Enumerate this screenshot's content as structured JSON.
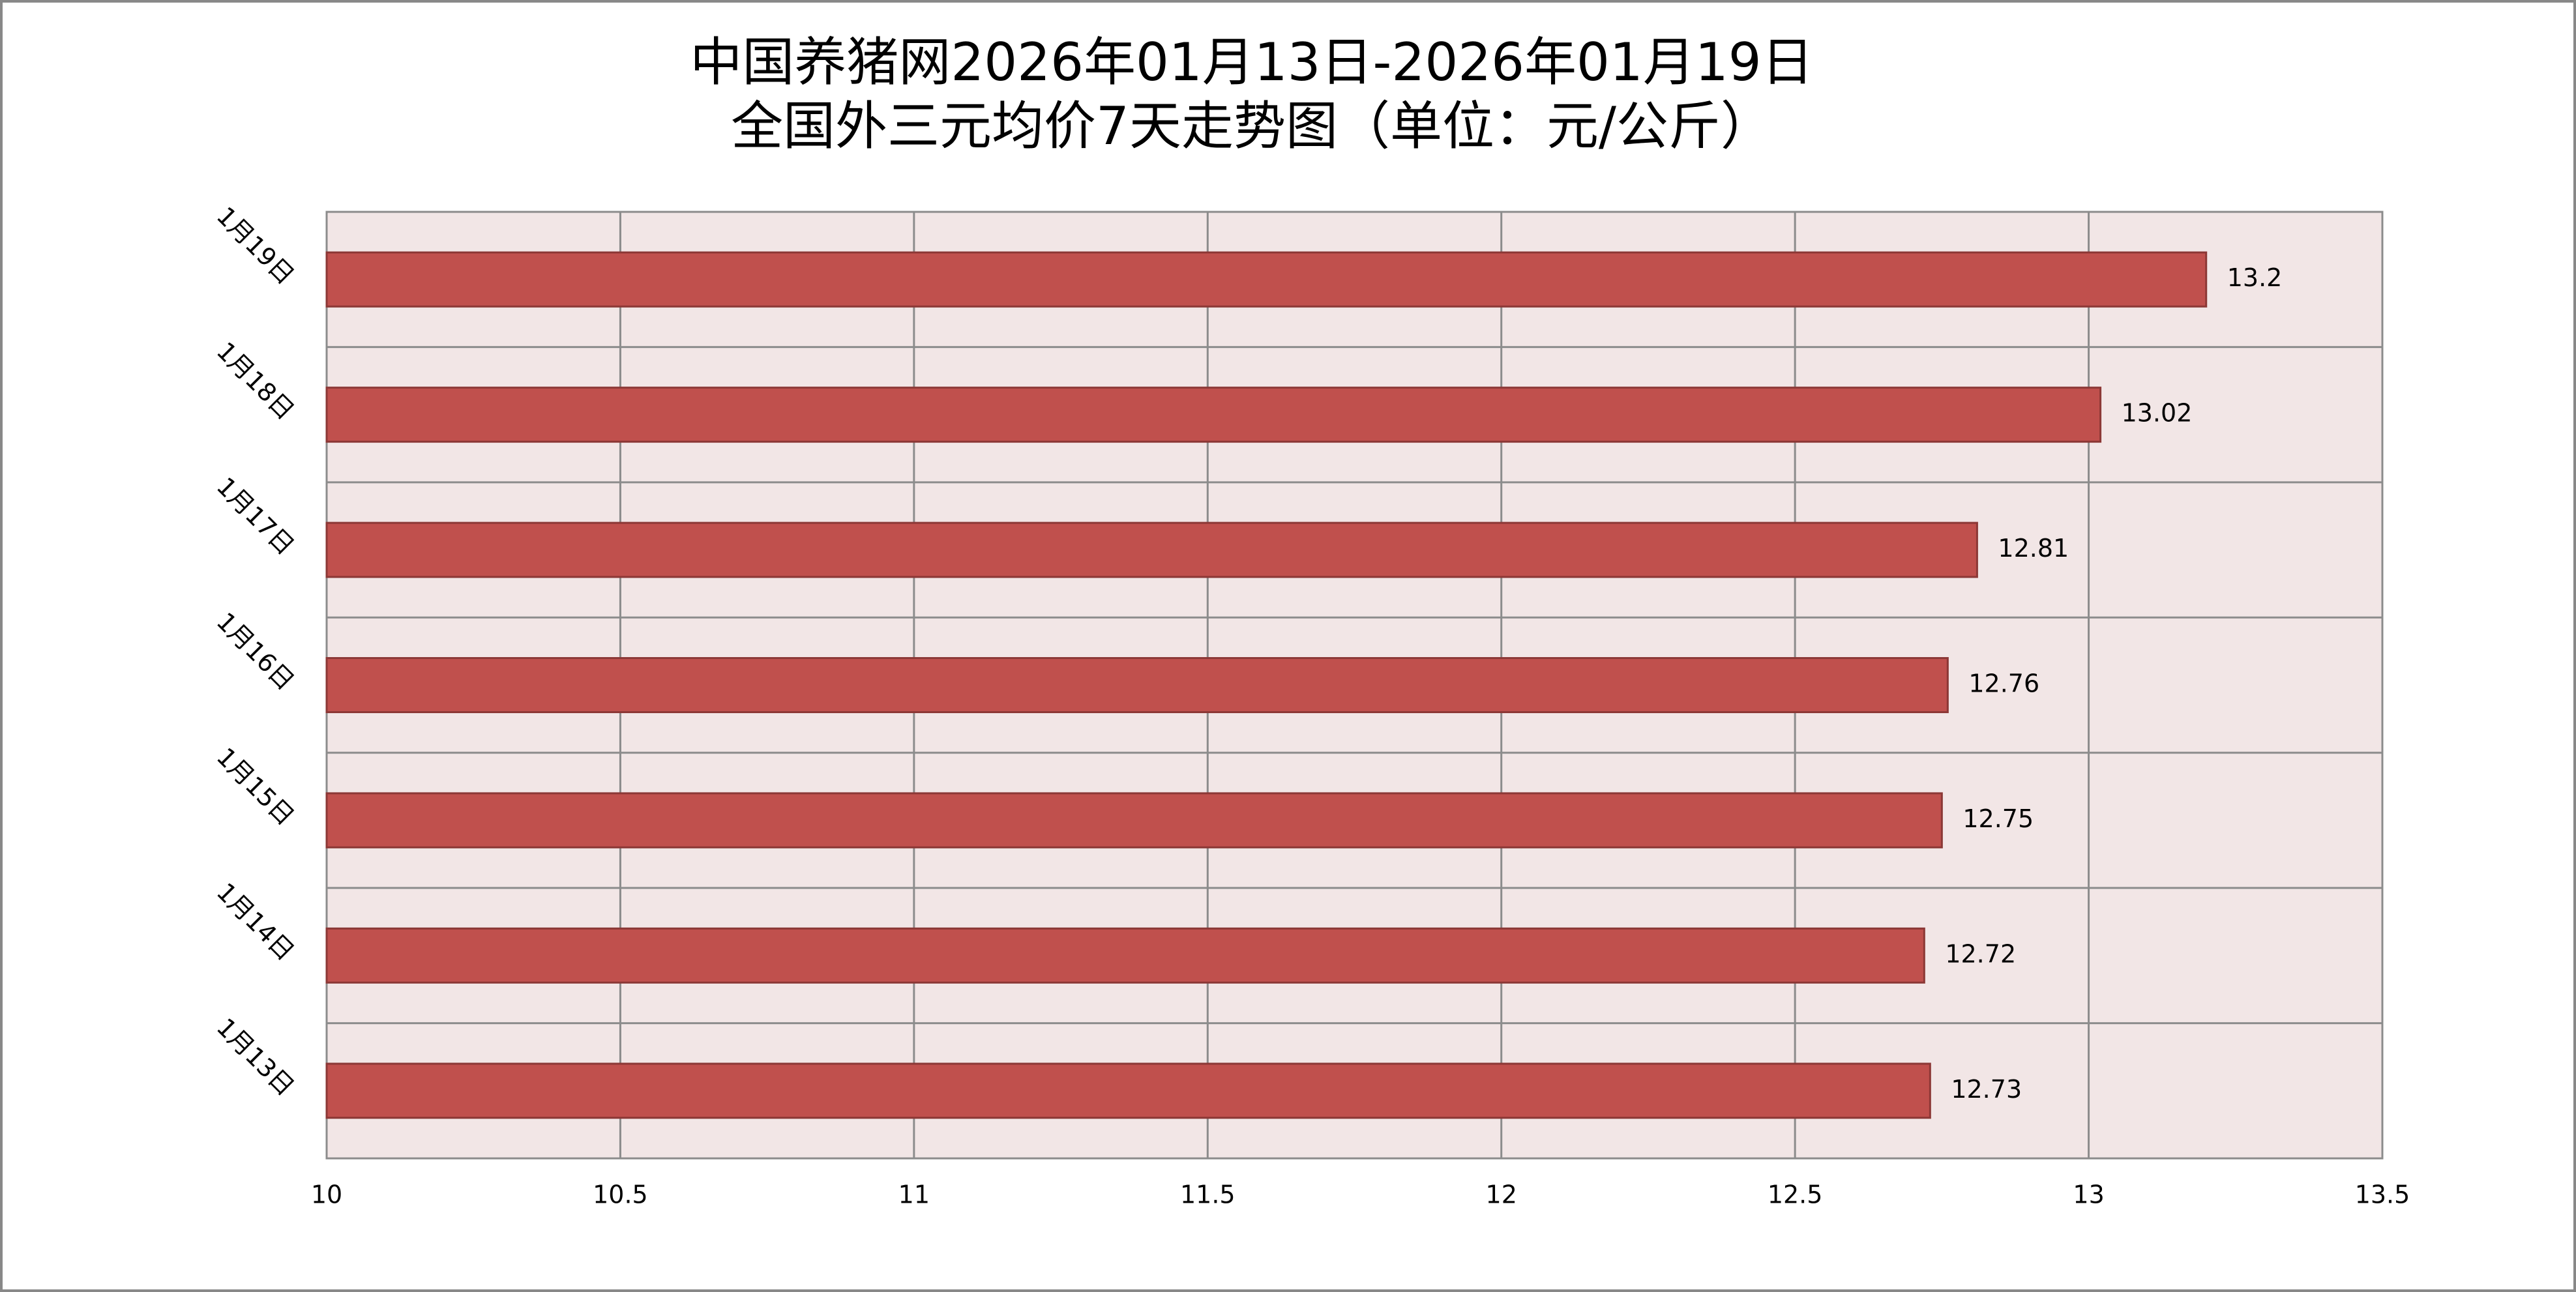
{
  "chart_data": {
    "type": "hbar",
    "title": "中国养猪网2026年01月13日-2026年01月19日",
    "subtitle": "全国外三元均价7天走势图（单位：元/公斤）",
    "categories": [
      "1月13日",
      "1月14日",
      "1月15日",
      "1月16日",
      "1月17日",
      "1月18日",
      "1月19日"
    ],
    "values": [
      12.73,
      12.72,
      12.75,
      12.76,
      12.81,
      13.02,
      13.2
    ],
    "color": "#c0504d",
    "xlim": [
      10,
      13.5
    ],
    "xticks": [
      10,
      10.5,
      11,
      11.5,
      12,
      12.5,
      13,
      13.5
    ],
    "grid": true
  }
}
